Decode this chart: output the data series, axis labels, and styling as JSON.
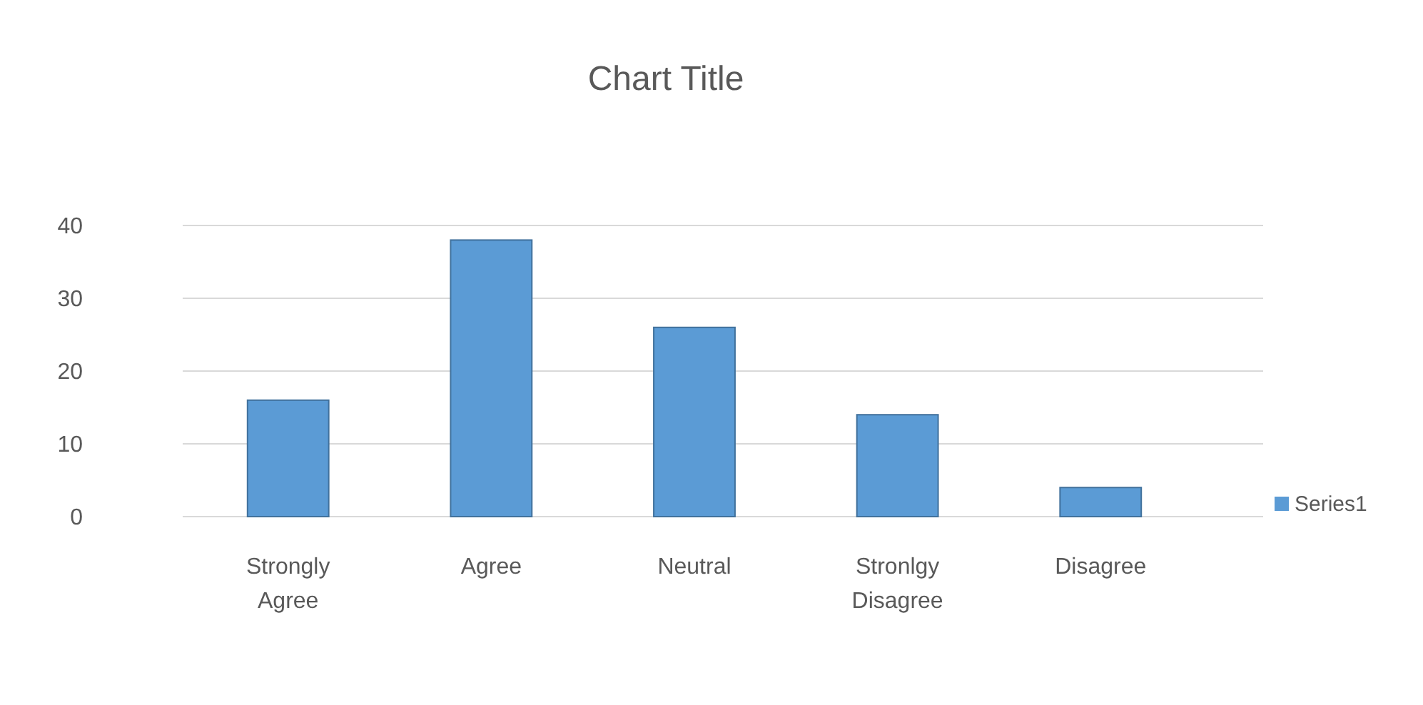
{
  "chart_data": {
    "type": "bar",
    "title": "Chart Title",
    "categories": [
      "Strongly Agree",
      "Agree",
      "Neutral",
      "Stronlgy Disagree",
      "Disagree"
    ],
    "series": [
      {
        "name": "Series1",
        "color": "#5b9bd5",
        "values": [
          16,
          38,
          26,
          14,
          4
        ]
      }
    ],
    "ylim": [
      0,
      40
    ],
    "yticks": [
      0,
      10,
      20,
      30,
      40
    ],
    "grid": "y",
    "legend": "right"
  }
}
